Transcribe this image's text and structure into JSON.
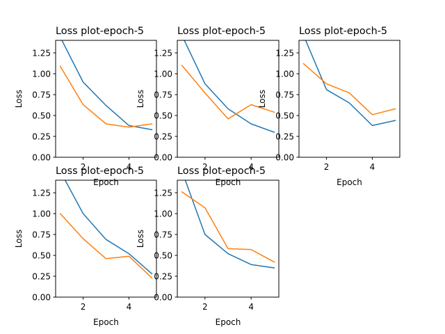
{
  "colors": {
    "series_0": "#1f77b4",
    "series_1": "#ff7f0e"
  },
  "chart_data": [
    {
      "type": "line",
      "title": "Loss plot-epoch-5",
      "xlabel": "Epoch",
      "ylabel": "Loss",
      "xlim": [
        0.8,
        5.2
      ],
      "ylim": [
        0,
        1.4
      ],
      "xticks": [
        2,
        4
      ],
      "yticks": [
        0.0,
        0.25,
        0.5,
        0.75,
        1.0,
        1.25
      ],
      "x": [
        1,
        2,
        3,
        4,
        5
      ],
      "series": [
        {
          "values": [
            1.44,
            0.9,
            0.62,
            0.38,
            0.33
          ]
        },
        {
          "values": [
            1.09,
            0.63,
            0.4,
            0.36,
            0.4
          ]
        }
      ]
    },
    {
      "type": "line",
      "title": "Loss plot-epoch-5",
      "xlabel": "Epoch",
      "ylabel": "Loss",
      "xlim": [
        0.8,
        5.2
      ],
      "ylim": [
        0,
        1.4
      ],
      "xticks": [
        2,
        4
      ],
      "yticks": [
        0.0,
        0.25,
        0.5,
        0.75,
        1.0,
        1.25
      ],
      "x": [
        1,
        2,
        3,
        4,
        5
      ],
      "series": [
        {
          "values": [
            1.46,
            0.88,
            0.58,
            0.4,
            0.3
          ]
        },
        {
          "values": [
            1.1,
            0.77,
            0.46,
            0.63,
            0.54
          ]
        }
      ]
    },
    {
      "type": "line",
      "title": "Loss plot-epoch-5",
      "xlabel": "Epoch",
      "ylabel": "Loss",
      "xlim": [
        0.8,
        5.2
      ],
      "ylim": [
        0,
        1.4
      ],
      "xticks": [
        2,
        4
      ],
      "yticks": [
        0.0,
        0.25,
        0.5,
        0.75,
        1.0,
        1.25
      ],
      "x": [
        1,
        2,
        3,
        4,
        5
      ],
      "series": [
        {
          "values": [
            1.46,
            0.81,
            0.65,
            0.38,
            0.44
          ]
        },
        {
          "values": [
            1.12,
            0.88,
            0.77,
            0.51,
            0.58
          ]
        }
      ]
    },
    {
      "type": "line",
      "title": "Loss plot-epoch-5",
      "xlabel": "Epoch",
      "ylabel": "Loss",
      "xlim": [
        0.8,
        5.2
      ],
      "ylim": [
        0,
        1.4
      ],
      "xticks": [
        2,
        4
      ],
      "yticks": [
        0.0,
        0.25,
        0.5,
        0.75,
        1.0,
        1.25
      ],
      "x": [
        1,
        2,
        3,
        4,
        5
      ],
      "series": [
        {
          "values": [
            1.51,
            1.0,
            0.69,
            0.52,
            0.28
          ]
        },
        {
          "values": [
            1.0,
            0.7,
            0.46,
            0.49,
            0.23
          ]
        }
      ]
    },
    {
      "type": "line",
      "title": "Loss plot-epoch-5",
      "xlabel": "Epoch",
      "ylabel": "Loss",
      "xlim": [
        0.8,
        5.2
      ],
      "ylim": [
        0,
        1.4
      ],
      "xticks": [
        2,
        4
      ],
      "yticks": [
        0.0,
        0.25,
        0.5,
        0.75,
        1.0,
        1.25
      ],
      "x": [
        1,
        2,
        3,
        4,
        5
      ],
      "series": [
        {
          "values": [
            1.51,
            0.75,
            0.52,
            0.39,
            0.35
          ]
        },
        {
          "values": [
            1.26,
            1.07,
            0.58,
            0.57,
            0.42
          ]
        }
      ]
    }
  ]
}
